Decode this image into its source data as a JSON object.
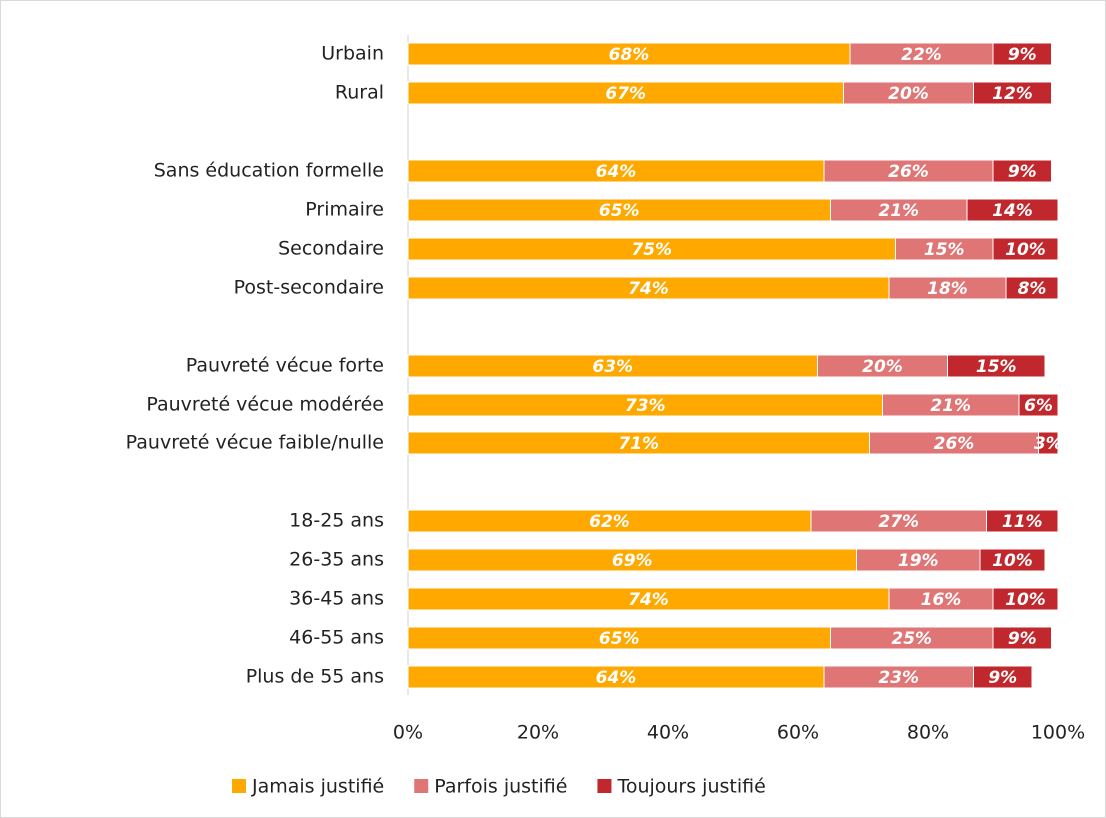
{
  "chart_data": {
    "type": "stacked_barh",
    "categories": [
      "Urbain",
      "Rural",
      "Sans éducation formelle",
      "Primaire",
      "Secondaire",
      "Post-secondaire",
      "Pauvreté vécue forte",
      "Pauvreté vécue modérée",
      "Pauvreté vécue faible/nulle",
      "18-25 ans",
      "26-35 ans",
      "36-45 ans",
      "46-55 ans",
      "Plus de 55 ans"
    ],
    "series": [
      {
        "name": "Jamais justifié",
        "color": "#FFA800",
        "values": [
          68,
          67,
          64,
          65,
          75,
          74,
          63,
          73,
          71,
          62,
          69,
          74,
          65,
          64
        ],
        "value_labels": [
          "68%",
          "67%",
          "64%",
          "65%",
          "75%",
          "74%",
          "63%",
          "73%",
          "71%",
          "62%",
          "69%",
          "74%",
          "65%",
          "64%"
        ]
      },
      {
        "name": "Parfois justifié",
        "color": "#E07575",
        "values": [
          22,
          20,
          26,
          21,
          15,
          18,
          20,
          21,
          26,
          27,
          19,
          16,
          25,
          23
        ],
        "value_labels": [
          "22%",
          "20%",
          "26%",
          "21%",
          "15%",
          "18%",
          "20%",
          "21%",
          "26%",
          "27%",
          "19%",
          "16%",
          "25%",
          "23%"
        ]
      },
      {
        "name": "Toujours justifié",
        "color": "#C0282D",
        "values": [
          9,
          12,
          9,
          14,
          10,
          8,
          15,
          6,
          3,
          11,
          10,
          10,
          9,
          9
        ],
        "value_labels": [
          "9%",
          "12%",
          "9%",
          "14%",
          "10%",
          "8%",
          "15%",
          "6%",
          "3%",
          "11%",
          "10%",
          "10%",
          "9%",
          "9%"
        ]
      }
    ],
    "xlim": [
      0,
      100
    ],
    "xticks": [
      {
        "value": 0,
        "label": "0%"
      },
      {
        "value": 20,
        "label": "20%"
      },
      {
        "value": 40,
        "label": "40%"
      },
      {
        "value": 60,
        "label": "60%"
      },
      {
        "value": 80,
        "label": "80%"
      },
      {
        "value": 100,
        "label": "100%"
      }
    ]
  }
}
